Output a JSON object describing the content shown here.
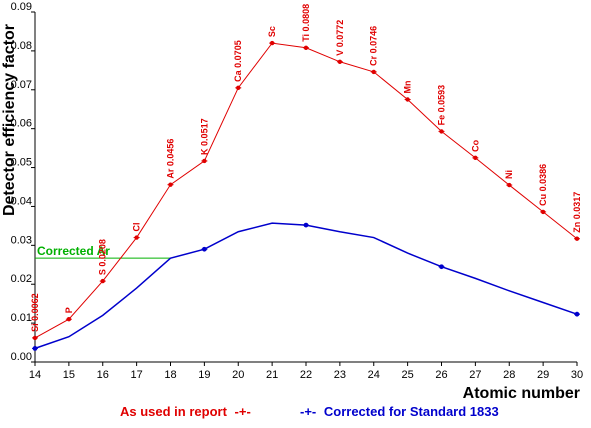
{
  "chart_data": {
    "type": "line",
    "title": "",
    "xlabel": "Atomic number",
    "ylabel": "Detector efficiency factor",
    "xlim": [
      14,
      30
    ],
    "ylim": [
      0,
      0.09
    ],
    "x_ticks": [
      "14",
      "15",
      "16",
      "17",
      "18",
      "19",
      "20",
      "21",
      "22",
      "23",
      "24",
      "25",
      "26",
      "27",
      "28",
      "29",
      "30"
    ],
    "y_ticks": [
      "0.00",
      "0.01",
      "0.02",
      "0.03",
      "0.04",
      "0.05",
      "0.06",
      "0.07",
      "0.08",
      "0.09"
    ],
    "grid": false,
    "legend_position": "bottom",
    "series": [
      {
        "name": "As used in report",
        "color": "#e00000",
        "marker": "+",
        "x": [
          14,
          15,
          16,
          17,
          18,
          19,
          20,
          21,
          22,
          23,
          24,
          25,
          26,
          27,
          28,
          29,
          30
        ],
        "y": [
          0.0062,
          0.011,
          0.0208,
          0.032,
          0.0456,
          0.0517,
          0.0705,
          0.082,
          0.0808,
          0.0772,
          0.0746,
          0.0675,
          0.0593,
          0.0525,
          0.0455,
          0.0386,
          0.0317
        ],
        "labels": [
          "Si 0.0062",
          "P",
          "S 0.0208",
          "Cl",
          "Ar 0.0456",
          "K 0.0517",
          "Ca 0.0705",
          "Sc",
          "Ti 0.0808",
          "V 0.0772",
          "Cr 0.0746",
          "Mn",
          "Fe 0.0593",
          "Co",
          "Ni",
          "Cu 0.0386",
          "Zn 0.0317"
        ]
      },
      {
        "name": "Corrected for Standard 1833",
        "color": "#0000cc",
        "marker": "+",
        "x": [
          14,
          15,
          16,
          17,
          18,
          19,
          20,
          21,
          22,
          23,
          24,
          25,
          26,
          27,
          28,
          29,
          30
        ],
        "y": [
          0.0035,
          0.0065,
          0.012,
          0.019,
          0.0267,
          0.029,
          0.0335,
          0.0357,
          0.0352,
          0.0335,
          0.032,
          0.028,
          0.0245,
          0.0215,
          0.0183,
          0.0153,
          0.0123
        ],
        "marker_x": [
          14,
          19,
          22,
          26,
          30
        ]
      }
    ],
    "annotations": [
      {
        "text": "Corrected Ar",
        "color": "#00b000",
        "x_from": 14,
        "x_to": 18,
        "y": 0.0267
      }
    ]
  }
}
